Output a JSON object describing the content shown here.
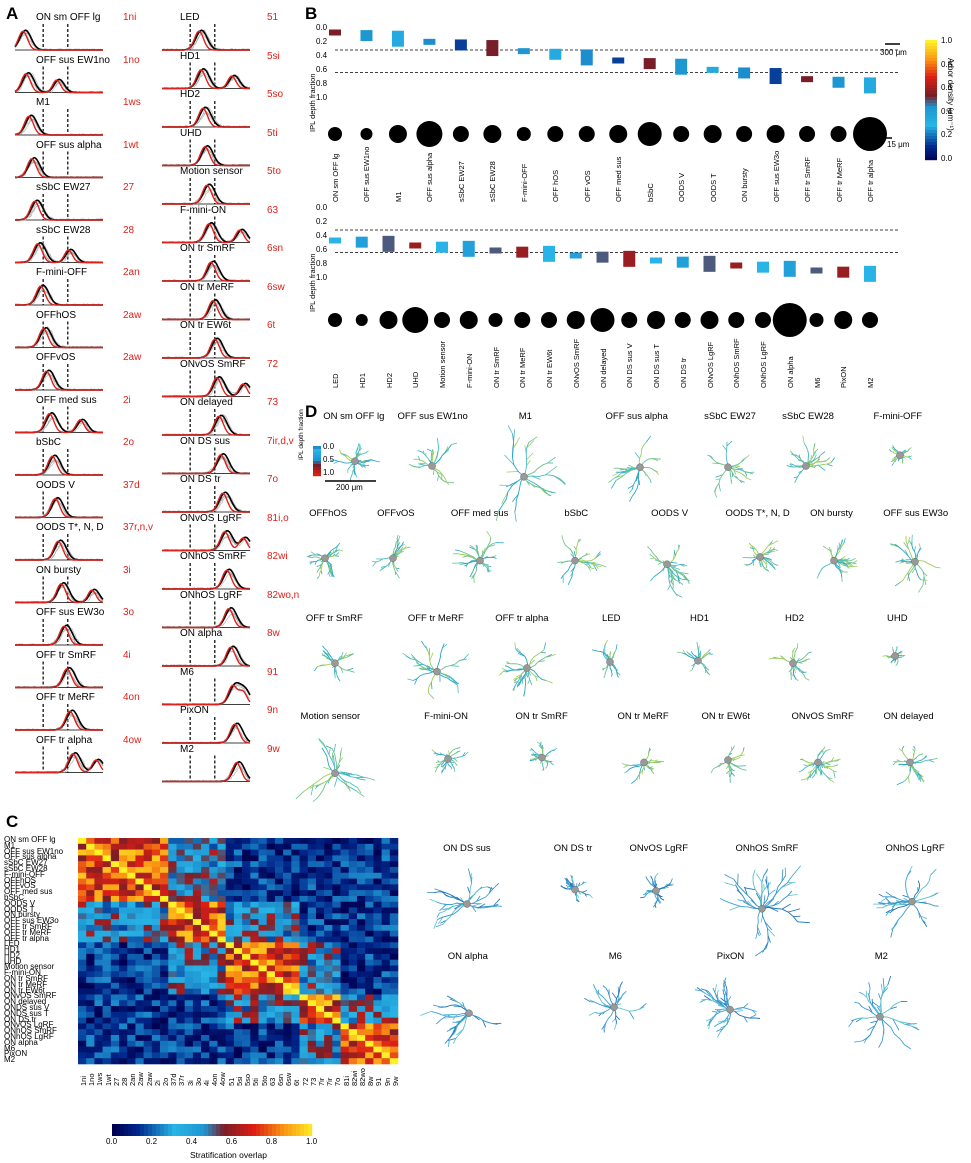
{
  "panel_labels": {
    "A": "A",
    "B": "B",
    "C": "C",
    "D": "D"
  },
  "panel_a": {
    "left": [
      {
        "name": "ON sm OFF lg",
        "code": "1ni"
      },
      {
        "name": "OFF sus EW1no",
        "code": "1no"
      },
      {
        "name": "M1",
        "code": "1ws"
      },
      {
        "name": "OFF sus alpha",
        "code": "1wt"
      },
      {
        "name": "sSbC EW27",
        "code": "27"
      },
      {
        "name": "sSbC EW28",
        "code": "28"
      },
      {
        "name": "F-mini-OFF",
        "code": "2an"
      },
      {
        "name": "OFFhOS",
        "code": "2aw"
      },
      {
        "name": "OFFvOS",
        "code": "2aw"
      },
      {
        "name": "OFF med sus",
        "code": "2i"
      },
      {
        "name": "bSbC",
        "code": "2o"
      },
      {
        "name": "OODS V",
        "code": "37d"
      },
      {
        "name": "OODS T*, N, D",
        "code": "37r,n,v"
      },
      {
        "name": "ON bursty",
        "code": "3i"
      },
      {
        "name": "OFF sus EW3o",
        "code": "3o"
      },
      {
        "name": "OFF tr SmRF",
        "code": "4i"
      },
      {
        "name": "OFF tr MeRF",
        "code": "4on"
      },
      {
        "name": "OFF tr alpha",
        "code": "4ow"
      }
    ],
    "right": [
      {
        "name": "LED",
        "code": "51"
      },
      {
        "name": "HD1",
        "code": "5si"
      },
      {
        "name": "HD2",
        "code": "5so"
      },
      {
        "name": "UHD",
        "code": "5ti"
      },
      {
        "name": "Motion sensor",
        "code": "5to"
      },
      {
        "name": "F-mini-ON",
        "code": "63"
      },
      {
        "name": "ON tr SmRF",
        "code": "6sn"
      },
      {
        "name": "ON tr MeRF",
        "code": "6sw"
      },
      {
        "name": "ON tr EW6t",
        "code": "6t"
      },
      {
        "name": "ONvOS SmRF",
        "code": "72"
      },
      {
        "name": "ON delayed",
        "code": "73"
      },
      {
        "name": "ON DS sus",
        "code": "7ir,d,v"
      },
      {
        "name": "ON DS tr",
        "code": "7o"
      },
      {
        "name": "ONvOS LgRF",
        "code": "81i,o"
      },
      {
        "name": "ONhOS SmRF",
        "code": "82wi"
      },
      {
        "name": "ONhOS LgRF",
        "code": "82wo,n"
      },
      {
        "name": "ON alpha",
        "code": "8w"
      },
      {
        "name": "M6",
        "code": "91"
      },
      {
        "name": "PixON",
        "code": "9n"
      },
      {
        "name": "M2",
        "code": "9w"
      }
    ]
  },
  "panel_b": {
    "ylabel": "IPL depth fraction",
    "yticks": [
      "0.0",
      "0.2",
      "0.4",
      "0.6",
      "0.8",
      "1.0"
    ],
    "scale_tree": "300 μm",
    "scale_soma": "15 μm",
    "colorbar_label": "Arbor density (μm⁻¹)",
    "colorbar_ticks": [
      "1.0",
      "0.8",
      "0.6",
      "0.4",
      "0.2",
      "0.0"
    ],
    "top_types": [
      "ON sm OFF lg",
      "OFF sus EW1no",
      "M1",
      "OFF sus alpha",
      "sSbC EW27",
      "sSbC EW28",
      "F-mini-OFF",
      "OFF hOS",
      "OFF vOS",
      "OFF med sus",
      "bSbC",
      "OODS V",
      "OODS T",
      "ON bursty",
      "OFF sus EW3o",
      "OFF tr SmRF",
      "OFF tr MeRF",
      "OFF tr alpha"
    ],
    "bottom_types": [
      "LED",
      "HD1",
      "HD2",
      "UHD",
      "Motion sensor",
      "F-mini-ON",
      "ON tr SmRF",
      "ON tr MeRF",
      "ON tr EW6t",
      "ONvOS SmRF",
      "ON delayed",
      "ON DS sus V",
      "ON DS sus T",
      "ON DS tr",
      "ONvOS LgRF",
      "ONhOS SmRF",
      "ONhOS LgRF",
      "ON alpha",
      "M6",
      "PixON",
      "M2"
    ]
  },
  "panel_c": {
    "rows": [
      "ON sm OFF lg",
      "M1",
      "OFF sus EW1no",
      "OFF sus alpha",
      "sSbC EW27",
      "sSbC EW28",
      "F-mini-OFF",
      "OFFhOS",
      "OFFvOS",
      "OFF med sus",
      "bSbC",
      "OODS V",
      "OODS T",
      "ON bursty",
      "OFF sus EW3o",
      "OFF tr SmRF",
      "OFF tr MeRF",
      "OFF tr alpha",
      "LED",
      "HD1",
      "HD2",
      "UHD",
      "Motion sensor",
      "F-mini-ON",
      "ON tr SmRF",
      "ON tr MeRF",
      "ON tr EW6t",
      "ONvOS SmRF",
      "ON delayed",
      "ONDS sus V",
      "ONDS sus T",
      "ON DS tr",
      "ONvOS LgRF",
      "ONhOS SmRF",
      "ONhOS LgRF",
      "ON alpha",
      "M6",
      "PixON",
      "M2"
    ],
    "cols": [
      "1ni",
      "1no",
      "1ws",
      "1wt",
      "27",
      "28",
      "2an",
      "2aw",
      "2aw",
      "2i",
      "2o",
      "37d",
      "37r",
      "3i",
      "3o",
      "4i",
      "4on",
      "4ow",
      "51",
      "5si",
      "5so",
      "5ti",
      "5to",
      "63",
      "6sn",
      "6sw",
      "6t",
      "72",
      "73",
      "7ir",
      "7ir",
      "7o",
      "81i",
      "82wi",
      "82wo",
      "8w",
      "91",
      "9n",
      "9w"
    ],
    "colorbar_ticks": [
      "0.0",
      "0.2",
      "0.4",
      "0.6",
      "0.8",
      "1.0"
    ],
    "colorbar_label": "Stratification overlap"
  },
  "panel_d": {
    "inset_label": "IPL depth fraction",
    "inset_ticks": [
      "0.0",
      "0.5",
      "1.0"
    ],
    "scale": "200 μm",
    "cells": [
      "ON sm OFF lg",
      "OFF sus EW1no",
      "M1",
      "OFF sus alpha",
      "sSbC EW27",
      "sSbC EW28",
      "F-mini-OFF",
      "OFFhOS",
      "OFFvOS",
      "OFF med sus",
      "bSbC",
      "OODS V",
      "OODS T*, N, D",
      "ON bursty",
      "OFF sus EW3o",
      "OFF tr SmRF",
      "OFF tr MeRF",
      "OFF tr alpha",
      "LED",
      "HD1",
      "HD2",
      "UHD",
      "Motion sensor",
      "F-mini-ON",
      "ON tr SmRF",
      "ON tr MeRF",
      "ON tr EW6t",
      "ONvOS SmRF",
      "ON delayed",
      "ON DS sus",
      "ON DS tr",
      "ONvOS LgRF",
      "ONhOS SmRF",
      "ONhOS LgRF",
      "ON alpha",
      "M6",
      "PixON",
      "M2"
    ]
  }
}
